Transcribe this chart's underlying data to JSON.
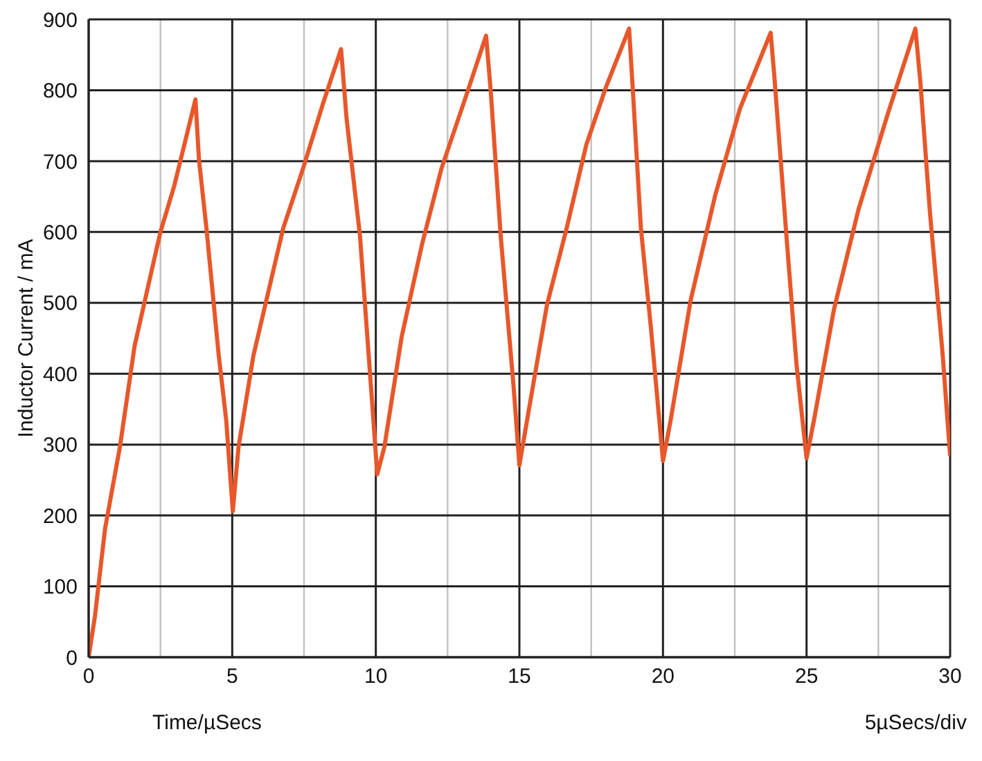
{
  "chart_data": {
    "type": "line",
    "ylabel": "Inductor Current / mA",
    "annotations": [
      "Time/µSecs",
      "5µSecs/div"
    ],
    "xlim": [
      0,
      30
    ],
    "xticks": [
      0,
      {
        "value": 2.5,
        "label": null
      },
      5,
      {
        "value": 7.5,
        "label": null
      },
      10,
      {
        "value": 12.5,
        "label": null
      },
      15,
      {
        "value": 17.5,
        "label": null
      },
      20,
      {
        "value": 22.5,
        "label": null
      },
      25,
      {
        "value": 27.5,
        "label": null
      },
      30
    ],
    "ylim": [
      0,
      900
    ],
    "yticks": [
      0,
      100,
      200,
      300,
      400,
      500,
      600,
      700,
      800,
      900
    ],
    "grid": true,
    "marker": "none",
    "line_style": "solid",
    "series": [
      {
        "color": "#e8572a",
        "x": [
          0,
          0.22,
          0.57,
          1.09,
          1.6,
          2.03,
          2.5,
          2.98,
          3.72,
          3.84,
          4.1,
          4.53,
          4.79,
          5.02,
          5.22,
          5.74,
          6.26,
          6.78,
          7.47,
          8.16,
          8.79,
          8.98,
          9.45,
          9.88,
          10.05,
          10.3,
          10.9,
          11.6,
          12.29,
          13.16,
          13.84,
          14.0,
          14.35,
          14.8,
          15.0,
          15.27,
          15.96,
          16.65,
          17.33,
          18.03,
          18.82,
          18.97,
          19.23,
          19.58,
          20.0,
          20.27,
          20.96,
          21.82,
          22.68,
          23.75,
          23.88,
          24.3,
          24.65,
          25.0,
          25.26,
          25.95,
          26.81,
          27.84,
          28.79,
          28.96,
          29.3,
          29.73,
          30
        ],
        "values": [
          0,
          58,
          181,
          297,
          439,
          516,
          600,
          665,
          787,
          703,
          606,
          426,
          335,
          206,
          297,
          426,
          516,
          606,
          690,
          781,
          858,
          761,
          594,
          355,
          258,
          297,
          452,
          581,
          690,
          794,
          877,
          800,
          594,
          381,
          271,
          335,
          497,
          606,
          723,
          806,
          887,
          787,
          606,
          465,
          277,
          335,
          503,
          652,
          774,
          881,
          819,
          594,
          413,
          281,
          335,
          490,
          632,
          768,
          887,
          813,
          626,
          432,
          284
        ]
      }
    ]
  }
}
